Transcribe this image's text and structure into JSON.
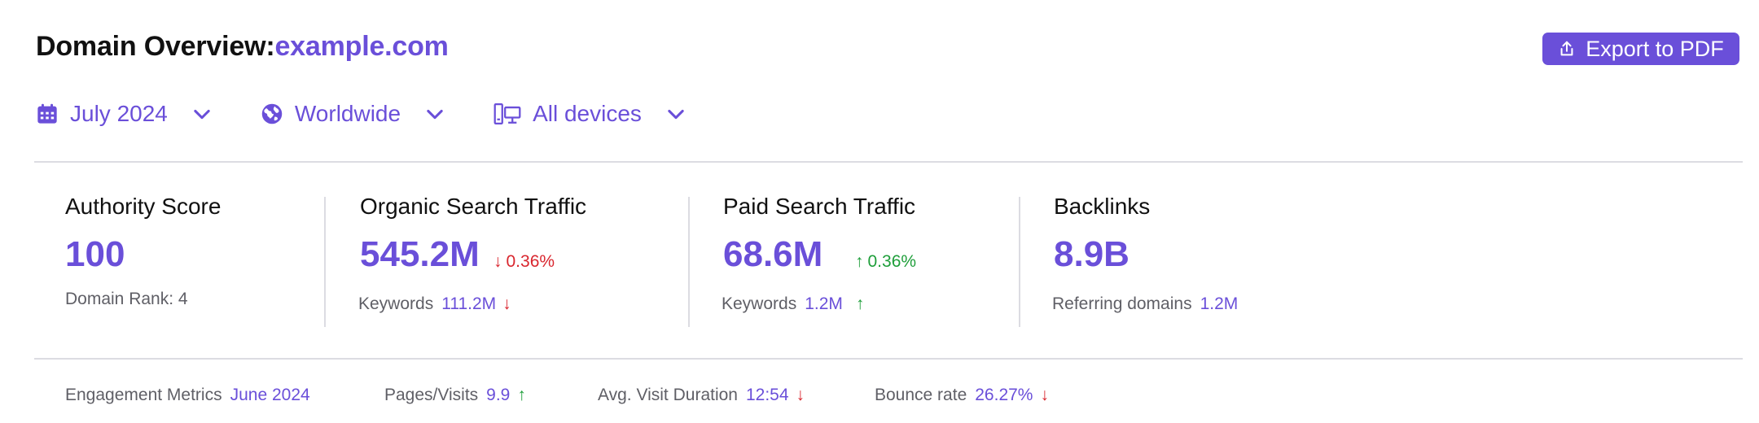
{
  "header": {
    "title": "Domain Overview:",
    "domain": "example.com"
  },
  "export": {
    "label": "Export to PDF"
  },
  "filters": [
    {
      "label": "July 2024",
      "icon": "calendar-icon"
    },
    {
      "label": "Worldwide",
      "icon": "globe-icon"
    },
    {
      "label": "All devices",
      "icon": "devices-icon"
    }
  ],
  "metrics": {
    "authority": {
      "title": "Authority Score",
      "value": "100",
      "sub_label": "Domain Rank: 4"
    },
    "organic": {
      "title": "Organic Search Traffic",
      "value": "545.2M",
      "delta": "0.36%",
      "delta_dir": "down",
      "sub_label": "Keywords",
      "sub_value": "111.2M",
      "sub_dir": "down"
    },
    "paid": {
      "title": "Paid Search Traffic",
      "value": "68.6M",
      "delta": "0.36%",
      "delta_dir": "up",
      "sub_label": "Keywords",
      "sub_value": "1.2M",
      "sub_dir": "up"
    },
    "backlinks": {
      "title": "Backlinks",
      "value": "8.9B",
      "sub_label": "Referring domains",
      "sub_value": "1.2M"
    }
  },
  "engagement": {
    "label": "Engagement Metrics",
    "period": "June 2024",
    "items": [
      {
        "label": "Pages/Visits",
        "value": "9.9",
        "dir": "up"
      },
      {
        "label": "Avg. Visit Duration",
        "value": "12:54",
        "dir": "down"
      },
      {
        "label": "Bounce rate",
        "value": "26.27%",
        "dir": "down"
      }
    ]
  },
  "colors": {
    "accent": "#6a4fd9",
    "down": "#d9262e",
    "up": "#1e9e3a",
    "divider": "#dcdce2"
  }
}
